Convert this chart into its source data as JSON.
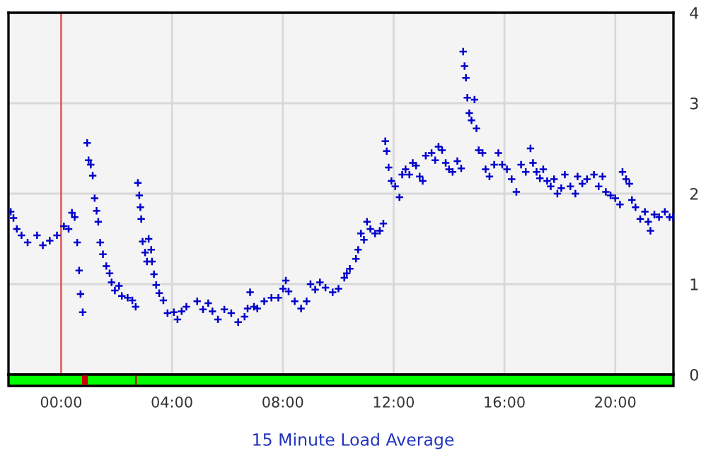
{
  "chart_data": {
    "type": "scatter",
    "title": "15 Minute Load Average",
    "x": [
      -1.82,
      -1.72,
      -1.6,
      -1.43,
      -1.21,
      -0.87,
      -0.66,
      -0.41,
      -0.15,
      0.1,
      0.27,
      0.39,
      0.49,
      0.58,
      0.65,
      0.7,
      0.78,
      0.94,
      0.99,
      1.07,
      1.14,
      1.21,
      1.28,
      1.34,
      1.41,
      1.51,
      1.63,
      1.75,
      1.82,
      1.94,
      2.09,
      2.19,
      2.4,
      2.57,
      2.69,
      2.77,
      2.82,
      2.86,
      2.89,
      2.94,
      3.03,
      3.1,
      3.16,
      3.25,
      3.28,
      3.35,
      3.43,
      3.54,
      3.69,
      3.84,
      4.07,
      4.2,
      4.35,
      4.52,
      4.91,
      5.12,
      5.31,
      5.46,
      5.66,
      5.89,
      6.14,
      6.39,
      6.62,
      6.73,
      6.82,
      6.96,
      7.08,
      7.33,
      7.59,
      7.84,
      8.01,
      8.11,
      8.21,
      8.43,
      8.66,
      8.86,
      9.0,
      9.17,
      9.34,
      9.54,
      9.8,
      10.01,
      10.22,
      10.31,
      10.42,
      10.64,
      10.72,
      10.82,
      10.93,
      11.04,
      11.16,
      11.33,
      11.5,
      11.63,
      11.7,
      11.75,
      11.82,
      11.92,
      12.06,
      12.21,
      12.31,
      12.43,
      12.57,
      12.69,
      12.81,
      12.94,
      13.05,
      13.16,
      13.37,
      13.5,
      13.62,
      13.75,
      13.88,
      14.0,
      14.13,
      14.3,
      14.44,
      14.51,
      14.56,
      14.61,
      14.66,
      14.73,
      14.81,
      14.92,
      14.99,
      15.07,
      15.21,
      15.32,
      15.46,
      15.63,
      15.78,
      15.92,
      16.09,
      16.26,
      16.43,
      16.6,
      16.77,
      16.94,
      17.03,
      17.16,
      17.28,
      17.4,
      17.54,
      17.67,
      17.79,
      17.91,
      18.05,
      18.18,
      18.38,
      18.56,
      18.64,
      18.81,
      18.98,
      19.23,
      19.4,
      19.54,
      19.66,
      19.83,
      20.0,
      20.17,
      20.26,
      20.39,
      20.51,
      20.6,
      20.73,
      20.9,
      21.07,
      21.19,
      21.27,
      21.41,
      21.58,
      21.79,
      21.96,
      22.08
    ],
    "series": [
      {
        "color": "#0000cc",
        "values": [
          1.8,
          1.73,
          1.61,
          1.54,
          1.46,
          1.54,
          1.43,
          1.48,
          1.54,
          1.64,
          1.61,
          1.79,
          1.74,
          1.46,
          1.15,
          0.89,
          0.69,
          2.56,
          2.37,
          2.32,
          2.2,
          1.95,
          1.81,
          1.69,
          1.46,
          1.33,
          1.2,
          1.12,
          1.02,
          0.93,
          0.98,
          0.87,
          0.85,
          0.82,
          0.75,
          2.12,
          1.98,
          1.85,
          1.72,
          1.47,
          1.35,
          1.25,
          1.5,
          1.38,
          1.25,
          1.11,
          0.99,
          0.9,
          0.82,
          0.68,
          0.69,
          0.61,
          0.7,
          0.75,
          0.81,
          0.72,
          0.79,
          0.7,
          0.61,
          0.72,
          0.68,
          0.58,
          0.64,
          0.73,
          0.91,
          0.75,
          0.73,
          0.81,
          0.85,
          0.85,
          0.95,
          1.04,
          0.92,
          0.81,
          0.73,
          0.81,
          1.0,
          0.94,
          1.02,
          0.96,
          0.91,
          0.95,
          1.07,
          1.12,
          1.17,
          1.28,
          1.38,
          1.56,
          1.49,
          1.69,
          1.61,
          1.56,
          1.59,
          1.67,
          2.58,
          2.47,
          2.29,
          2.14,
          2.08,
          1.96,
          2.21,
          2.27,
          2.21,
          2.34,
          2.31,
          2.19,
          2.14,
          2.42,
          2.45,
          2.37,
          2.52,
          2.48,
          2.34,
          2.27,
          2.24,
          2.36,
          2.28,
          3.57,
          3.41,
          3.28,
          3.06,
          2.89,
          2.81,
          3.04,
          2.72,
          2.48,
          2.45,
          2.27,
          2.19,
          2.32,
          2.45,
          2.32,
          2.27,
          2.16,
          2.02,
          2.32,
          2.24,
          2.5,
          2.34,
          2.24,
          2.17,
          2.27,
          2.14,
          2.08,
          2.16,
          2.0,
          2.06,
          2.21,
          2.08,
          2.0,
          2.19,
          2.11,
          2.16,
          2.21,
          2.08,
          2.19,
          2.02,
          1.98,
          1.95,
          1.88,
          2.24,
          2.16,
          2.11,
          1.93,
          1.85,
          1.72,
          1.8,
          1.69,
          1.59,
          1.77,
          1.74,
          1.8,
          1.74,
          1.74
        ]
      }
    ],
    "marker": "cross",
    "xlim": [
      -1.9,
      22.1
    ],
    "xticks": [
      {
        "value": 0,
        "label": "00:00"
      },
      {
        "value": 4,
        "label": "04:00"
      },
      {
        "value": 8,
        "label": "08:00"
      },
      {
        "value": 12,
        "label": "12:00"
      },
      {
        "value": 16,
        "label": "16:00"
      },
      {
        "value": 20,
        "label": "20:00"
      }
    ],
    "ylim": [
      0,
      4
    ],
    "yticks": [
      0,
      1,
      2,
      3,
      4
    ],
    "grid": true,
    "ref_lines": [
      {
        "axis": "x",
        "value": 0,
        "color": "#e06666"
      }
    ]
  }
}
